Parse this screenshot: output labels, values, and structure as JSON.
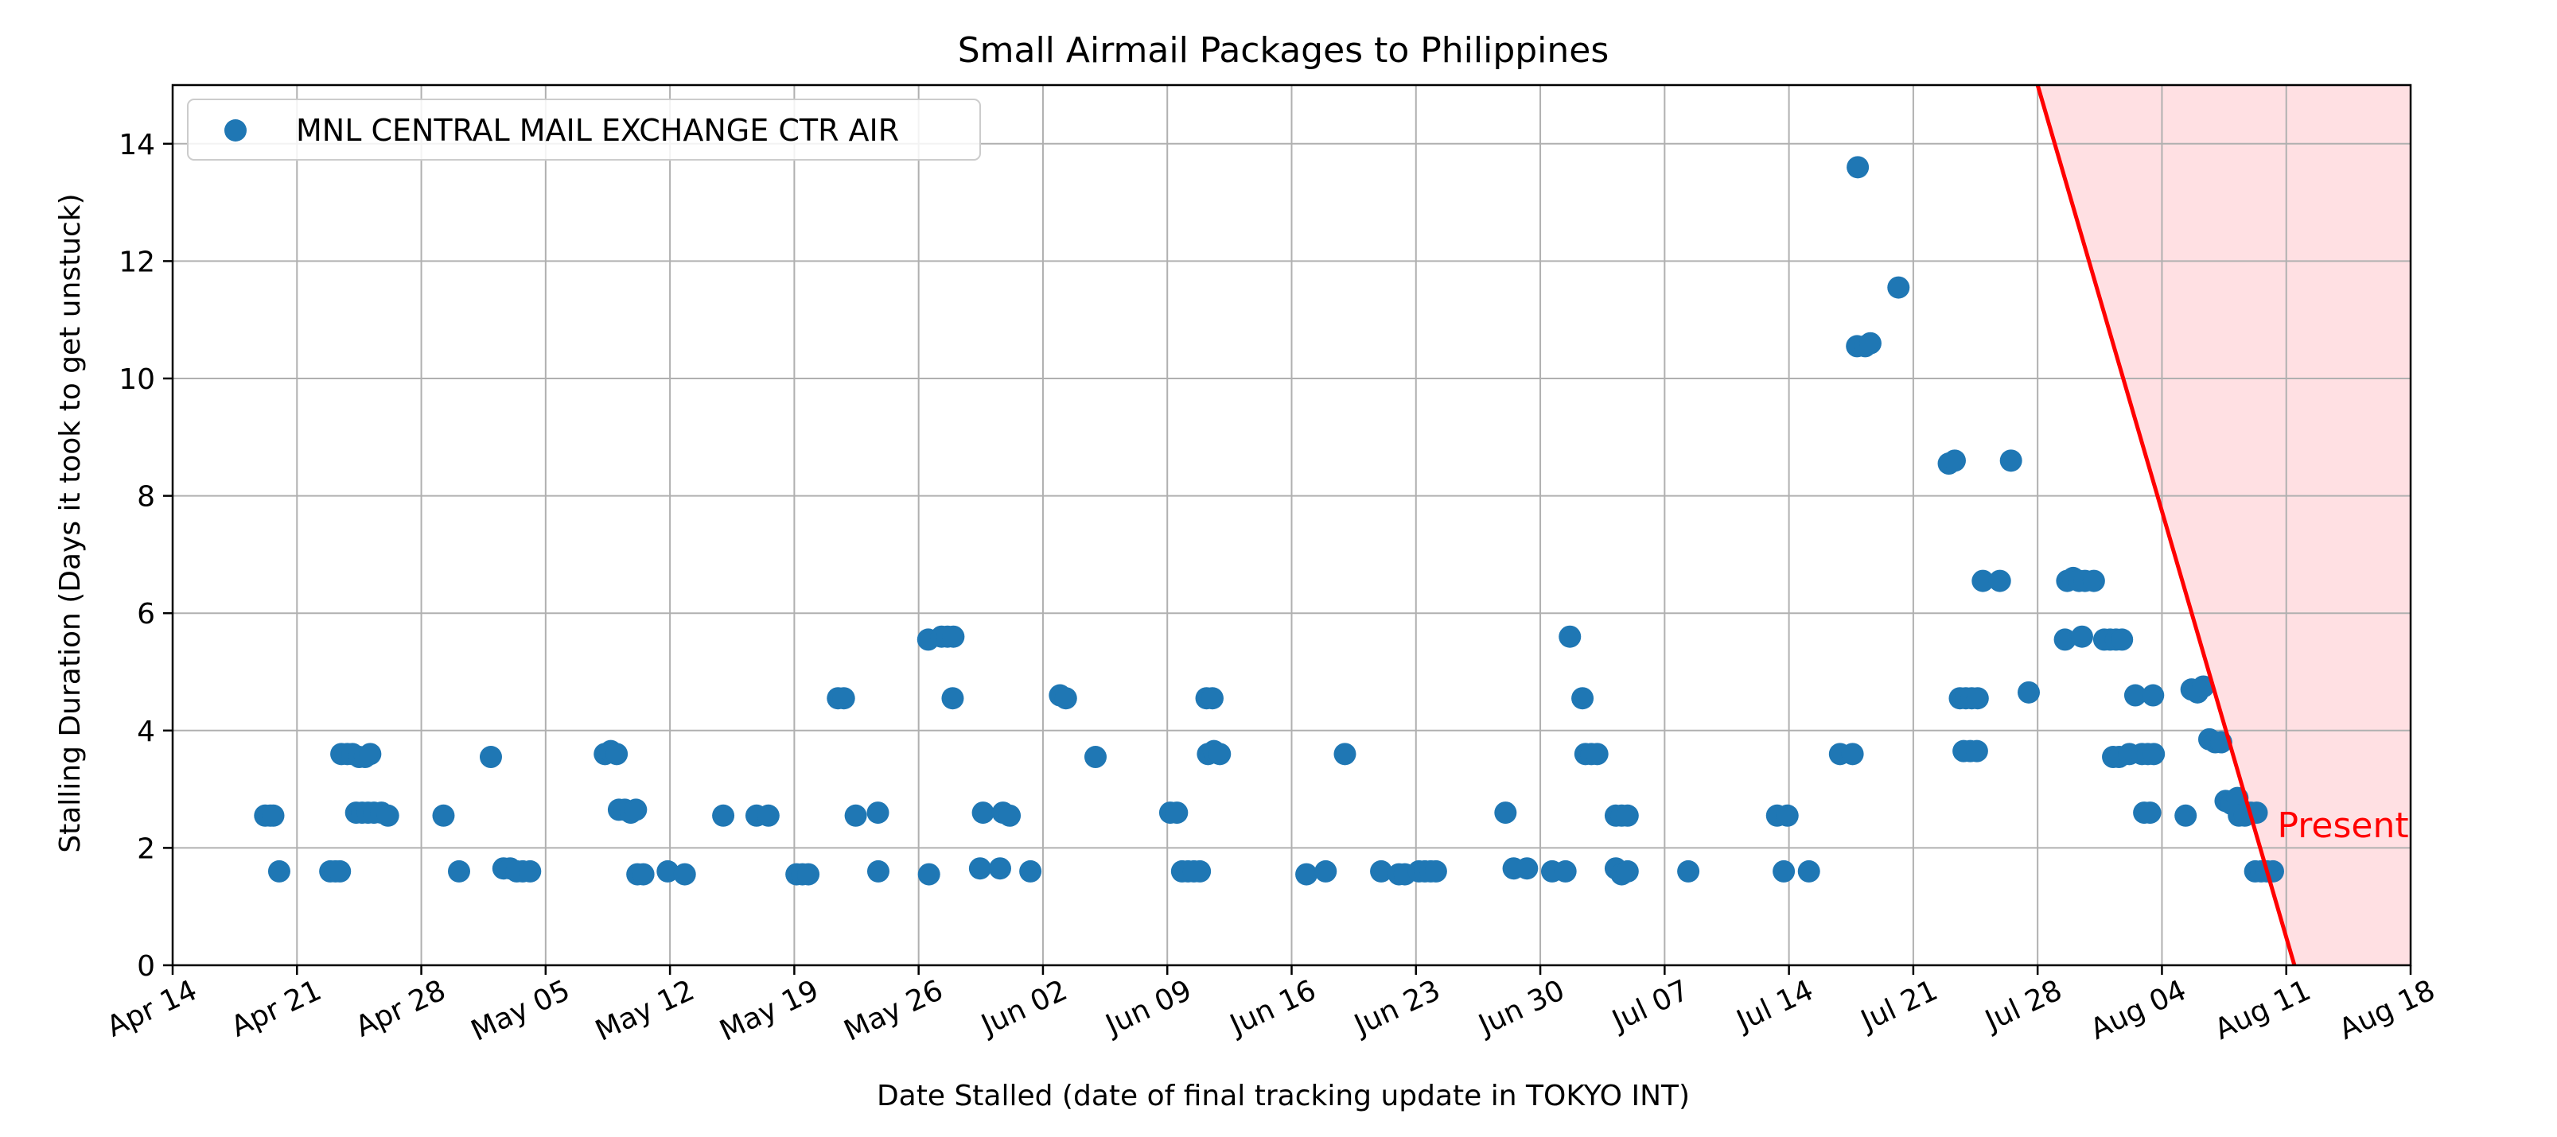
{
  "chart_data": {
    "type": "scatter",
    "title": "Small Airmail Packages to Philippines",
    "xlabel": "Date Stalled (date of final tracking update in TOKYO INT)",
    "ylabel": "Stalling Duration (Days it took to get unstuck)",
    "xlim": [
      "2019-04-14",
      "2019-08-18"
    ],
    "ylim": [
      0,
      15
    ],
    "grid": true,
    "legend_position": "top-left",
    "x_ticks": [
      {
        "date": "2019-04-14",
        "label": "Apr 14"
      },
      {
        "date": "2019-04-21",
        "label": "Apr 21"
      },
      {
        "date": "2019-04-28",
        "label": "Apr 28"
      },
      {
        "date": "2019-05-05",
        "label": "May 05"
      },
      {
        "date": "2019-05-12",
        "label": "May 12"
      },
      {
        "date": "2019-05-19",
        "label": "May 19"
      },
      {
        "date": "2019-05-26",
        "label": "May 26"
      },
      {
        "date": "2019-06-02",
        "label": "Jun 02"
      },
      {
        "date": "2019-06-09",
        "label": "Jun 09"
      },
      {
        "date": "2019-06-16",
        "label": "Jun 16"
      },
      {
        "date": "2019-06-23",
        "label": "Jun 23"
      },
      {
        "date": "2019-06-30",
        "label": "Jun 30"
      },
      {
        "date": "2019-07-07",
        "label": "Jul 07"
      },
      {
        "date": "2019-07-14",
        "label": "Jul 14"
      },
      {
        "date": "2019-07-21",
        "label": "Jul 21"
      },
      {
        "date": "2019-07-28",
        "label": "Jul 28"
      },
      {
        "date": "2019-08-04",
        "label": "Aug 04"
      },
      {
        "date": "2019-08-11",
        "label": "Aug 11"
      },
      {
        "date": "2019-08-18",
        "label": "Aug 18"
      }
    ],
    "y_ticks": [
      0,
      2,
      4,
      6,
      8,
      10,
      12,
      14
    ],
    "series": [
      {
        "name": "MNL CENTRAL MAIL EXCHANGE CTR AIR",
        "color": "#1f77b4",
        "points": [
          {
            "x": "2019-04-19 05:00",
            "y": 2.55
          },
          {
            "x": "2019-04-19 12:00",
            "y": 2.55
          },
          {
            "x": "2019-04-19 16:00",
            "y": 2.55
          },
          {
            "x": "2019-04-20 00:00",
            "y": 1.6
          },
          {
            "x": "2019-04-22 21:00",
            "y": 1.6
          },
          {
            "x": "2019-04-23 04:00",
            "y": 1.6
          },
          {
            "x": "2019-04-23 10:00",
            "y": 1.6
          },
          {
            "x": "2019-04-23 12:00",
            "y": 3.6
          },
          {
            "x": "2019-04-23 20:00",
            "y": 3.6
          },
          {
            "x": "2019-04-24 03:00",
            "y": 3.6
          },
          {
            "x": "2019-04-24 12:00",
            "y": 3.55
          },
          {
            "x": "2019-04-24 20:00",
            "y": 3.55
          },
          {
            "x": "2019-04-25 03:00",
            "y": 3.6
          },
          {
            "x": "2019-04-24 08:00",
            "y": 2.6
          },
          {
            "x": "2019-04-24 16:00",
            "y": 2.6
          },
          {
            "x": "2019-04-25 00:00",
            "y": 2.6
          },
          {
            "x": "2019-04-25 08:00",
            "y": 2.6
          },
          {
            "x": "2019-04-25 18:00",
            "y": 2.6
          },
          {
            "x": "2019-04-26 03:00",
            "y": 2.55
          },
          {
            "x": "2019-04-29 06:00",
            "y": 2.55
          },
          {
            "x": "2019-04-30 03:00",
            "y": 1.6
          },
          {
            "x": "2019-05-01 22:00",
            "y": 3.55
          },
          {
            "x": "2019-05-02 15:00",
            "y": 1.65
          },
          {
            "x": "2019-05-03 00:00",
            "y": 1.65
          },
          {
            "x": "2019-05-03 09:00",
            "y": 1.6
          },
          {
            "x": "2019-05-03 17:00",
            "y": 1.6
          },
          {
            "x": "2019-05-04 03:00",
            "y": 1.6
          },
          {
            "x": "2019-05-08 08:00",
            "y": 3.6
          },
          {
            "x": "2019-05-08 16:00",
            "y": 3.65
          },
          {
            "x": "2019-05-09 00:00",
            "y": 3.6
          },
          {
            "x": "2019-05-09 03:00",
            "y": 2.65
          },
          {
            "x": "2019-05-09 11:00",
            "y": 2.65
          },
          {
            "x": "2019-05-09 19:00",
            "y": 2.6
          },
          {
            "x": "2019-05-10 02:00",
            "y": 2.65
          },
          {
            "x": "2019-05-10 04:00",
            "y": 1.55
          },
          {
            "x": "2019-05-10 12:00",
            "y": 1.55
          },
          {
            "x": "2019-05-11 21:00",
            "y": 1.6
          },
          {
            "x": "2019-05-12 20:00",
            "y": 1.55
          },
          {
            "x": "2019-05-15 00:00",
            "y": 2.55
          },
          {
            "x": "2019-05-16 21:00",
            "y": 2.55
          },
          {
            "x": "2019-05-17 13:00",
            "y": 2.55
          },
          {
            "x": "2019-05-19 03:00",
            "y": 1.55
          },
          {
            "x": "2019-05-19 11:00",
            "y": 1.55
          },
          {
            "x": "2019-05-19 19:00",
            "y": 1.55
          },
          {
            "x": "2019-05-21 11:00",
            "y": 4.55
          },
          {
            "x": "2019-05-21 19:00",
            "y": 4.55
          },
          {
            "x": "2019-05-22 11:00",
            "y": 2.55
          },
          {
            "x": "2019-05-23 17:00",
            "y": 2.6
          },
          {
            "x": "2019-05-23 17:30",
            "y": 1.6
          },
          {
            "x": "2019-05-26 13:00",
            "y": 5.55
          },
          {
            "x": "2019-05-26 14:00",
            "y": 1.55
          },
          {
            "x": "2019-05-27 07:00",
            "y": 5.6
          },
          {
            "x": "2019-05-27 15:00",
            "y": 5.6
          },
          {
            "x": "2019-05-27 23:00",
            "y": 5.6
          },
          {
            "x": "2019-05-27 22:00",
            "y": 4.55
          },
          {
            "x": "2019-05-29 11:00",
            "y": 1.65
          },
          {
            "x": "2019-05-29 15:00",
            "y": 2.6
          },
          {
            "x": "2019-05-30 14:00",
            "y": 1.65
          },
          {
            "x": "2019-05-30 18:00",
            "y": 2.6
          },
          {
            "x": "2019-05-31 03:00",
            "y": 2.55
          },
          {
            "x": "2019-06-01 07:00",
            "y": 1.6
          },
          {
            "x": "2019-06-02 23:00",
            "y": 4.6
          },
          {
            "x": "2019-06-03 07:00",
            "y": 4.55
          },
          {
            "x": "2019-06-04 23:00",
            "y": 3.55
          },
          {
            "x": "2019-06-09 04:00",
            "y": 2.6
          },
          {
            "x": "2019-06-09 13:00",
            "y": 2.6
          },
          {
            "x": "2019-06-09 20:00",
            "y": 1.6
          },
          {
            "x": "2019-06-10 04:00",
            "y": 1.6
          },
          {
            "x": "2019-06-10 12:00",
            "y": 1.6
          },
          {
            "x": "2019-06-10 20:00",
            "y": 1.6
          },
          {
            "x": "2019-06-11 05:00",
            "y": 4.55
          },
          {
            "x": "2019-06-11 13:00",
            "y": 4.55
          },
          {
            "x": "2019-06-11 07:00",
            "y": 3.6
          },
          {
            "x": "2019-06-11 15:00",
            "y": 3.65
          },
          {
            "x": "2019-06-11 23:00",
            "y": 3.6
          },
          {
            "x": "2019-06-16 20:00",
            "y": 1.55
          },
          {
            "x": "2019-06-17 22:00",
            "y": 1.6
          },
          {
            "x": "2019-06-19 00:00",
            "y": 3.6
          },
          {
            "x": "2019-06-21 01:00",
            "y": 1.6
          },
          {
            "x": "2019-06-22 01:00",
            "y": 1.55
          },
          {
            "x": "2019-06-22 09:00",
            "y": 1.55
          },
          {
            "x": "2019-06-23 04:00",
            "y": 1.6
          },
          {
            "x": "2019-06-23 12:00",
            "y": 1.6
          },
          {
            "x": "2019-06-23 20:00",
            "y": 1.6
          },
          {
            "x": "2019-06-24 03:00",
            "y": 1.6
          },
          {
            "x": "2019-06-28 01:00",
            "y": 2.6
          },
          {
            "x": "2019-06-28 12:00",
            "y": 1.65
          },
          {
            "x": "2019-06-29 06:00",
            "y": 1.65
          },
          {
            "x": "2019-06-30 16:00",
            "y": 1.6
          },
          {
            "x": "2019-07-01 10:00",
            "y": 1.6
          },
          {
            "x": "2019-07-01 16:00",
            "y": 5.6
          },
          {
            "x": "2019-07-02 09:00",
            "y": 4.55
          },
          {
            "x": "2019-07-02 13:00",
            "y": 3.6
          },
          {
            "x": "2019-07-02 21:00",
            "y": 3.6
          },
          {
            "x": "2019-07-03 05:00",
            "y": 3.6
          },
          {
            "x": "2019-07-04 06:00",
            "y": 2.55
          },
          {
            "x": "2019-07-04 14:00",
            "y": 2.55
          },
          {
            "x": "2019-07-04 22:00",
            "y": 2.55
          },
          {
            "x": "2019-07-04 06:00",
            "y": 1.65
          },
          {
            "x": "2019-07-04 14:00",
            "y": 1.55
          },
          {
            "x": "2019-07-04 22:00",
            "y": 1.6
          },
          {
            "x": "2019-07-08 08:00",
            "y": 1.6
          },
          {
            "x": "2019-07-13 08:00",
            "y": 2.55
          },
          {
            "x": "2019-07-13 17:00",
            "y": 1.6
          },
          {
            "x": "2019-07-13 22:00",
            "y": 2.55
          },
          {
            "x": "2019-07-15 03:00",
            "y": 1.6
          },
          {
            "x": "2019-07-16 21:00",
            "y": 3.6
          },
          {
            "x": "2019-07-17 14:00",
            "y": 3.6
          },
          {
            "x": "2019-07-17 21:00",
            "y": 13.6
          },
          {
            "x": "2019-07-17 20:00",
            "y": 10.55
          },
          {
            "x": "2019-07-18 07:00",
            "y": 10.55
          },
          {
            "x": "2019-07-18 14:00",
            "y": 10.6
          },
          {
            "x": "2019-07-20 04:00",
            "y": 11.55
          },
          {
            "x": "2019-07-23 00:00",
            "y": 8.55
          },
          {
            "x": "2019-07-23 08:00",
            "y": 8.6
          },
          {
            "x": "2019-07-23 15:00",
            "y": 4.55
          },
          {
            "x": "2019-07-23 23:00",
            "y": 4.55
          },
          {
            "x": "2019-07-24 07:00",
            "y": 4.55
          },
          {
            "x": "2019-07-24 15:00",
            "y": 4.55
          },
          {
            "x": "2019-07-23 20:00",
            "y": 3.65
          },
          {
            "x": "2019-07-24 05:00",
            "y": 3.65
          },
          {
            "x": "2019-07-24 14:00",
            "y": 3.65
          },
          {
            "x": "2019-07-24 22:00",
            "y": 6.55
          },
          {
            "x": "2019-07-25 21:00",
            "y": 6.55
          },
          {
            "x": "2019-07-26 12:00",
            "y": 8.6
          },
          {
            "x": "2019-07-27 12:00",
            "y": 4.65
          },
          {
            "x": "2019-07-29 13:00",
            "y": 5.55
          },
          {
            "x": "2019-07-29 16:00",
            "y": 6.55
          },
          {
            "x": "2019-07-30 00:00",
            "y": 6.6
          },
          {
            "x": "2019-07-30 08:00",
            "y": 6.55
          },
          {
            "x": "2019-07-30 16:00",
            "y": 6.55
          },
          {
            "x": "2019-07-31 04:00",
            "y": 6.55
          },
          {
            "x": "2019-07-30 12:00",
            "y": 5.6
          },
          {
            "x": "2019-07-31 18:00",
            "y": 5.55
          },
          {
            "x": "2019-08-01 02:00",
            "y": 5.55
          },
          {
            "x": "2019-08-01 10:00",
            "y": 5.55
          },
          {
            "x": "2019-08-01 18:00",
            "y": 5.55
          },
          {
            "x": "2019-08-01 06:00",
            "y": 3.55
          },
          {
            "x": "2019-08-01 14:00",
            "y": 3.55
          },
          {
            "x": "2019-08-02 04:00",
            "y": 3.6
          },
          {
            "x": "2019-08-02 12:00",
            "y": 4.6
          },
          {
            "x": "2019-08-02 21:00",
            "y": 3.6
          },
          {
            "x": "2019-08-03 05:00",
            "y": 3.6
          },
          {
            "x": "2019-08-03 13:00",
            "y": 3.6
          },
          {
            "x": "2019-08-03 00:00",
            "y": 2.6
          },
          {
            "x": "2019-08-03 08:00",
            "y": 2.6
          },
          {
            "x": "2019-08-03 12:00",
            "y": 4.6
          },
          {
            "x": "2019-08-05 08:00",
            "y": 2.55
          },
          {
            "x": "2019-08-05 16:00",
            "y": 4.7
          },
          {
            "x": "2019-08-06 00:00",
            "y": 4.65
          },
          {
            "x": "2019-08-06 08:00",
            "y": 4.75
          },
          {
            "x": "2019-08-06 16:00",
            "y": 3.85
          },
          {
            "x": "2019-08-07 00:00",
            "y": 3.8
          },
          {
            "x": "2019-08-07 08:00",
            "y": 3.8
          },
          {
            "x": "2019-08-07 14:00",
            "y": 2.8
          },
          {
            "x": "2019-08-07 22:00",
            "y": 2.75
          },
          {
            "x": "2019-08-08 06:00",
            "y": 2.85
          },
          {
            "x": "2019-08-08 08:00",
            "y": 2.55
          },
          {
            "x": "2019-08-08 16:00",
            "y": 2.55
          },
          {
            "x": "2019-08-09 00:00",
            "y": 2.6
          },
          {
            "x": "2019-08-09 08:00",
            "y": 2.6
          },
          {
            "x": "2019-08-09 06:00",
            "y": 1.6
          },
          {
            "x": "2019-08-09 14:00",
            "y": 1.6
          },
          {
            "x": "2019-08-09 22:00",
            "y": 1.6
          },
          {
            "x": "2019-08-10 06:00",
            "y": 1.6
          }
        ]
      }
    ],
    "reference_line": {
      "color": "#ff0000",
      "from": {
        "x": "2019-07-28 00:00",
        "y": 15
      },
      "to": {
        "x": "2019-08-11 11:00",
        "y": 0
      }
    },
    "shaded_region": {
      "color": "#ffe0e3",
      "left_edge": [
        {
          "x": "2019-07-28 00:00",
          "y": 15
        },
        {
          "x": "2019-08-11 11:00",
          "y": 0
        }
      ]
    },
    "annotations": [
      {
        "text": "Present",
        "x": "2019-08-10 12:00",
        "y": 2.4,
        "color": "#ff0000"
      }
    ]
  }
}
